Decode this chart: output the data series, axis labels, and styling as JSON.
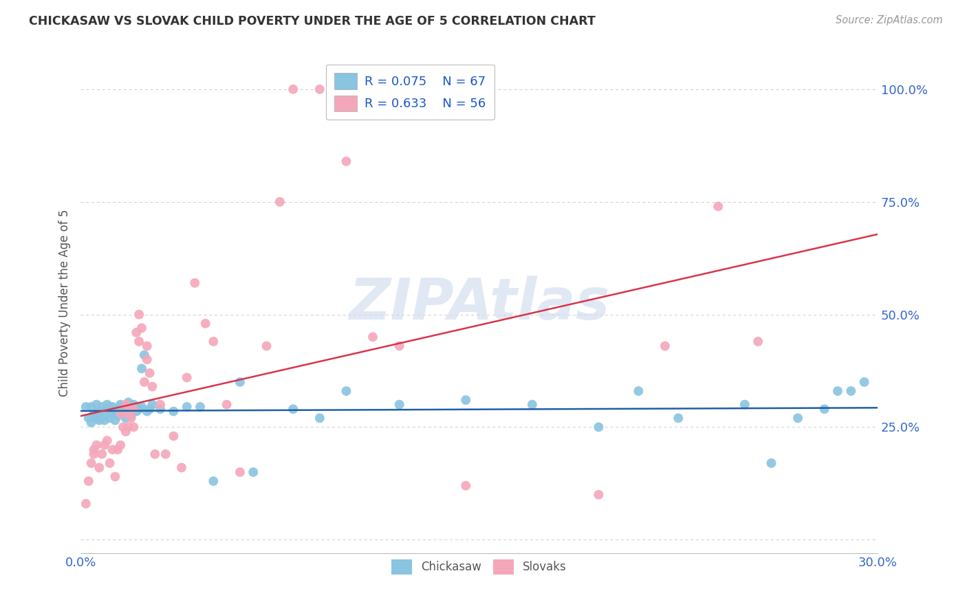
{
  "title": "CHICKASAW VS SLOVAK CHILD POVERTY UNDER THE AGE OF 5 CORRELATION CHART",
  "source": "Source: ZipAtlas.com",
  "ylabel": "Child Poverty Under the Age of 5",
  "chickasaw_color": "#89c4e1",
  "slovak_color": "#f4a7b9",
  "trendline_chickasaw_color": "#1f5fa6",
  "trendline_slovak_color": "#d9344a",
  "background_color": "#ffffff",
  "grid_color": "#cccccc",
  "watermark": "ZIPAtlas",
  "title_color": "#333333",
  "axis_tick_color": "#3366cc",
  "legend_label_color": "#1a56cc",
  "chickasaw_R": "0.075",
  "chickasaw_N": "67",
  "slovak_R": "0.633",
  "slovak_N": "56",
  "xlim": [
    0.0,
    0.3
  ],
  "ylim": [
    -0.03,
    1.08
  ],
  "ytick_vals": [
    0.0,
    0.25,
    0.5,
    0.75,
    1.0
  ],
  "ytick_labels": [
    "",
    "25.0%",
    "50.0%",
    "75.0%",
    "100.0%"
  ],
  "xtick_vals": [
    0.0,
    0.05,
    0.1,
    0.15,
    0.2,
    0.25,
    0.3
  ],
  "xtick_labels": [
    "0.0%",
    "",
    "",
    "",
    "",
    "",
    "30.0%"
  ],
  "chickasaw_x": [
    0.002,
    0.003,
    0.004,
    0.004,
    0.005,
    0.005,
    0.006,
    0.006,
    0.007,
    0.007,
    0.008,
    0.008,
    0.009,
    0.009,
    0.01,
    0.01,
    0.011,
    0.011,
    0.012,
    0.012,
    0.013,
    0.013,
    0.014,
    0.014,
    0.015,
    0.015,
    0.016,
    0.016,
    0.017,
    0.018,
    0.018,
    0.019,
    0.019,
    0.02,
    0.02,
    0.021,
    0.021,
    0.022,
    0.023,
    0.023,
    0.024,
    0.025,
    0.026,
    0.027,
    0.03,
    0.035,
    0.04,
    0.045,
    0.05,
    0.06,
    0.065,
    0.08,
    0.09,
    0.1,
    0.12,
    0.145,
    0.17,
    0.195,
    0.21,
    0.225,
    0.25,
    0.26,
    0.27,
    0.28,
    0.285,
    0.29,
    0.295
  ],
  "chickasaw_y": [
    0.295,
    0.27,
    0.26,
    0.295,
    0.275,
    0.28,
    0.27,
    0.3,
    0.285,
    0.265,
    0.27,
    0.295,
    0.275,
    0.265,
    0.29,
    0.3,
    0.27,
    0.295,
    0.28,
    0.295,
    0.265,
    0.285,
    0.275,
    0.28,
    0.3,
    0.295,
    0.29,
    0.285,
    0.27,
    0.295,
    0.305,
    0.29,
    0.275,
    0.3,
    0.29,
    0.285,
    0.295,
    0.29,
    0.38,
    0.295,
    0.41,
    0.285,
    0.29,
    0.3,
    0.29,
    0.285,
    0.295,
    0.295,
    0.13,
    0.35,
    0.15,
    0.29,
    0.27,
    0.33,
    0.3,
    0.31,
    0.3,
    0.25,
    0.33,
    0.27,
    0.3,
    0.17,
    0.27,
    0.29,
    0.33,
    0.33,
    0.35
  ],
  "slovak_x": [
    0.002,
    0.003,
    0.004,
    0.005,
    0.005,
    0.006,
    0.007,
    0.008,
    0.009,
    0.01,
    0.011,
    0.012,
    0.013,
    0.014,
    0.015,
    0.015,
    0.016,
    0.017,
    0.017,
    0.018,
    0.018,
    0.019,
    0.02,
    0.02,
    0.021,
    0.022,
    0.022,
    0.023,
    0.024,
    0.025,
    0.025,
    0.026,
    0.027,
    0.028,
    0.03,
    0.032,
    0.035,
    0.038,
    0.04,
    0.043,
    0.047,
    0.05,
    0.055,
    0.06,
    0.07,
    0.075,
    0.08,
    0.09,
    0.1,
    0.11,
    0.12,
    0.145,
    0.195,
    0.22,
    0.24,
    0.255
  ],
  "slovak_y": [
    0.08,
    0.13,
    0.17,
    0.19,
    0.2,
    0.21,
    0.16,
    0.19,
    0.21,
    0.22,
    0.17,
    0.2,
    0.14,
    0.2,
    0.21,
    0.28,
    0.25,
    0.24,
    0.3,
    0.25,
    0.28,
    0.27,
    0.29,
    0.25,
    0.46,
    0.44,
    0.5,
    0.47,
    0.35,
    0.4,
    0.43,
    0.37,
    0.34,
    0.19,
    0.3,
    0.19,
    0.23,
    0.16,
    0.36,
    0.57,
    0.48,
    0.44,
    0.3,
    0.15,
    0.43,
    0.75,
    1.0,
    1.0,
    0.84,
    0.45,
    0.43,
    0.12,
    0.1,
    0.43,
    0.74,
    0.44
  ]
}
